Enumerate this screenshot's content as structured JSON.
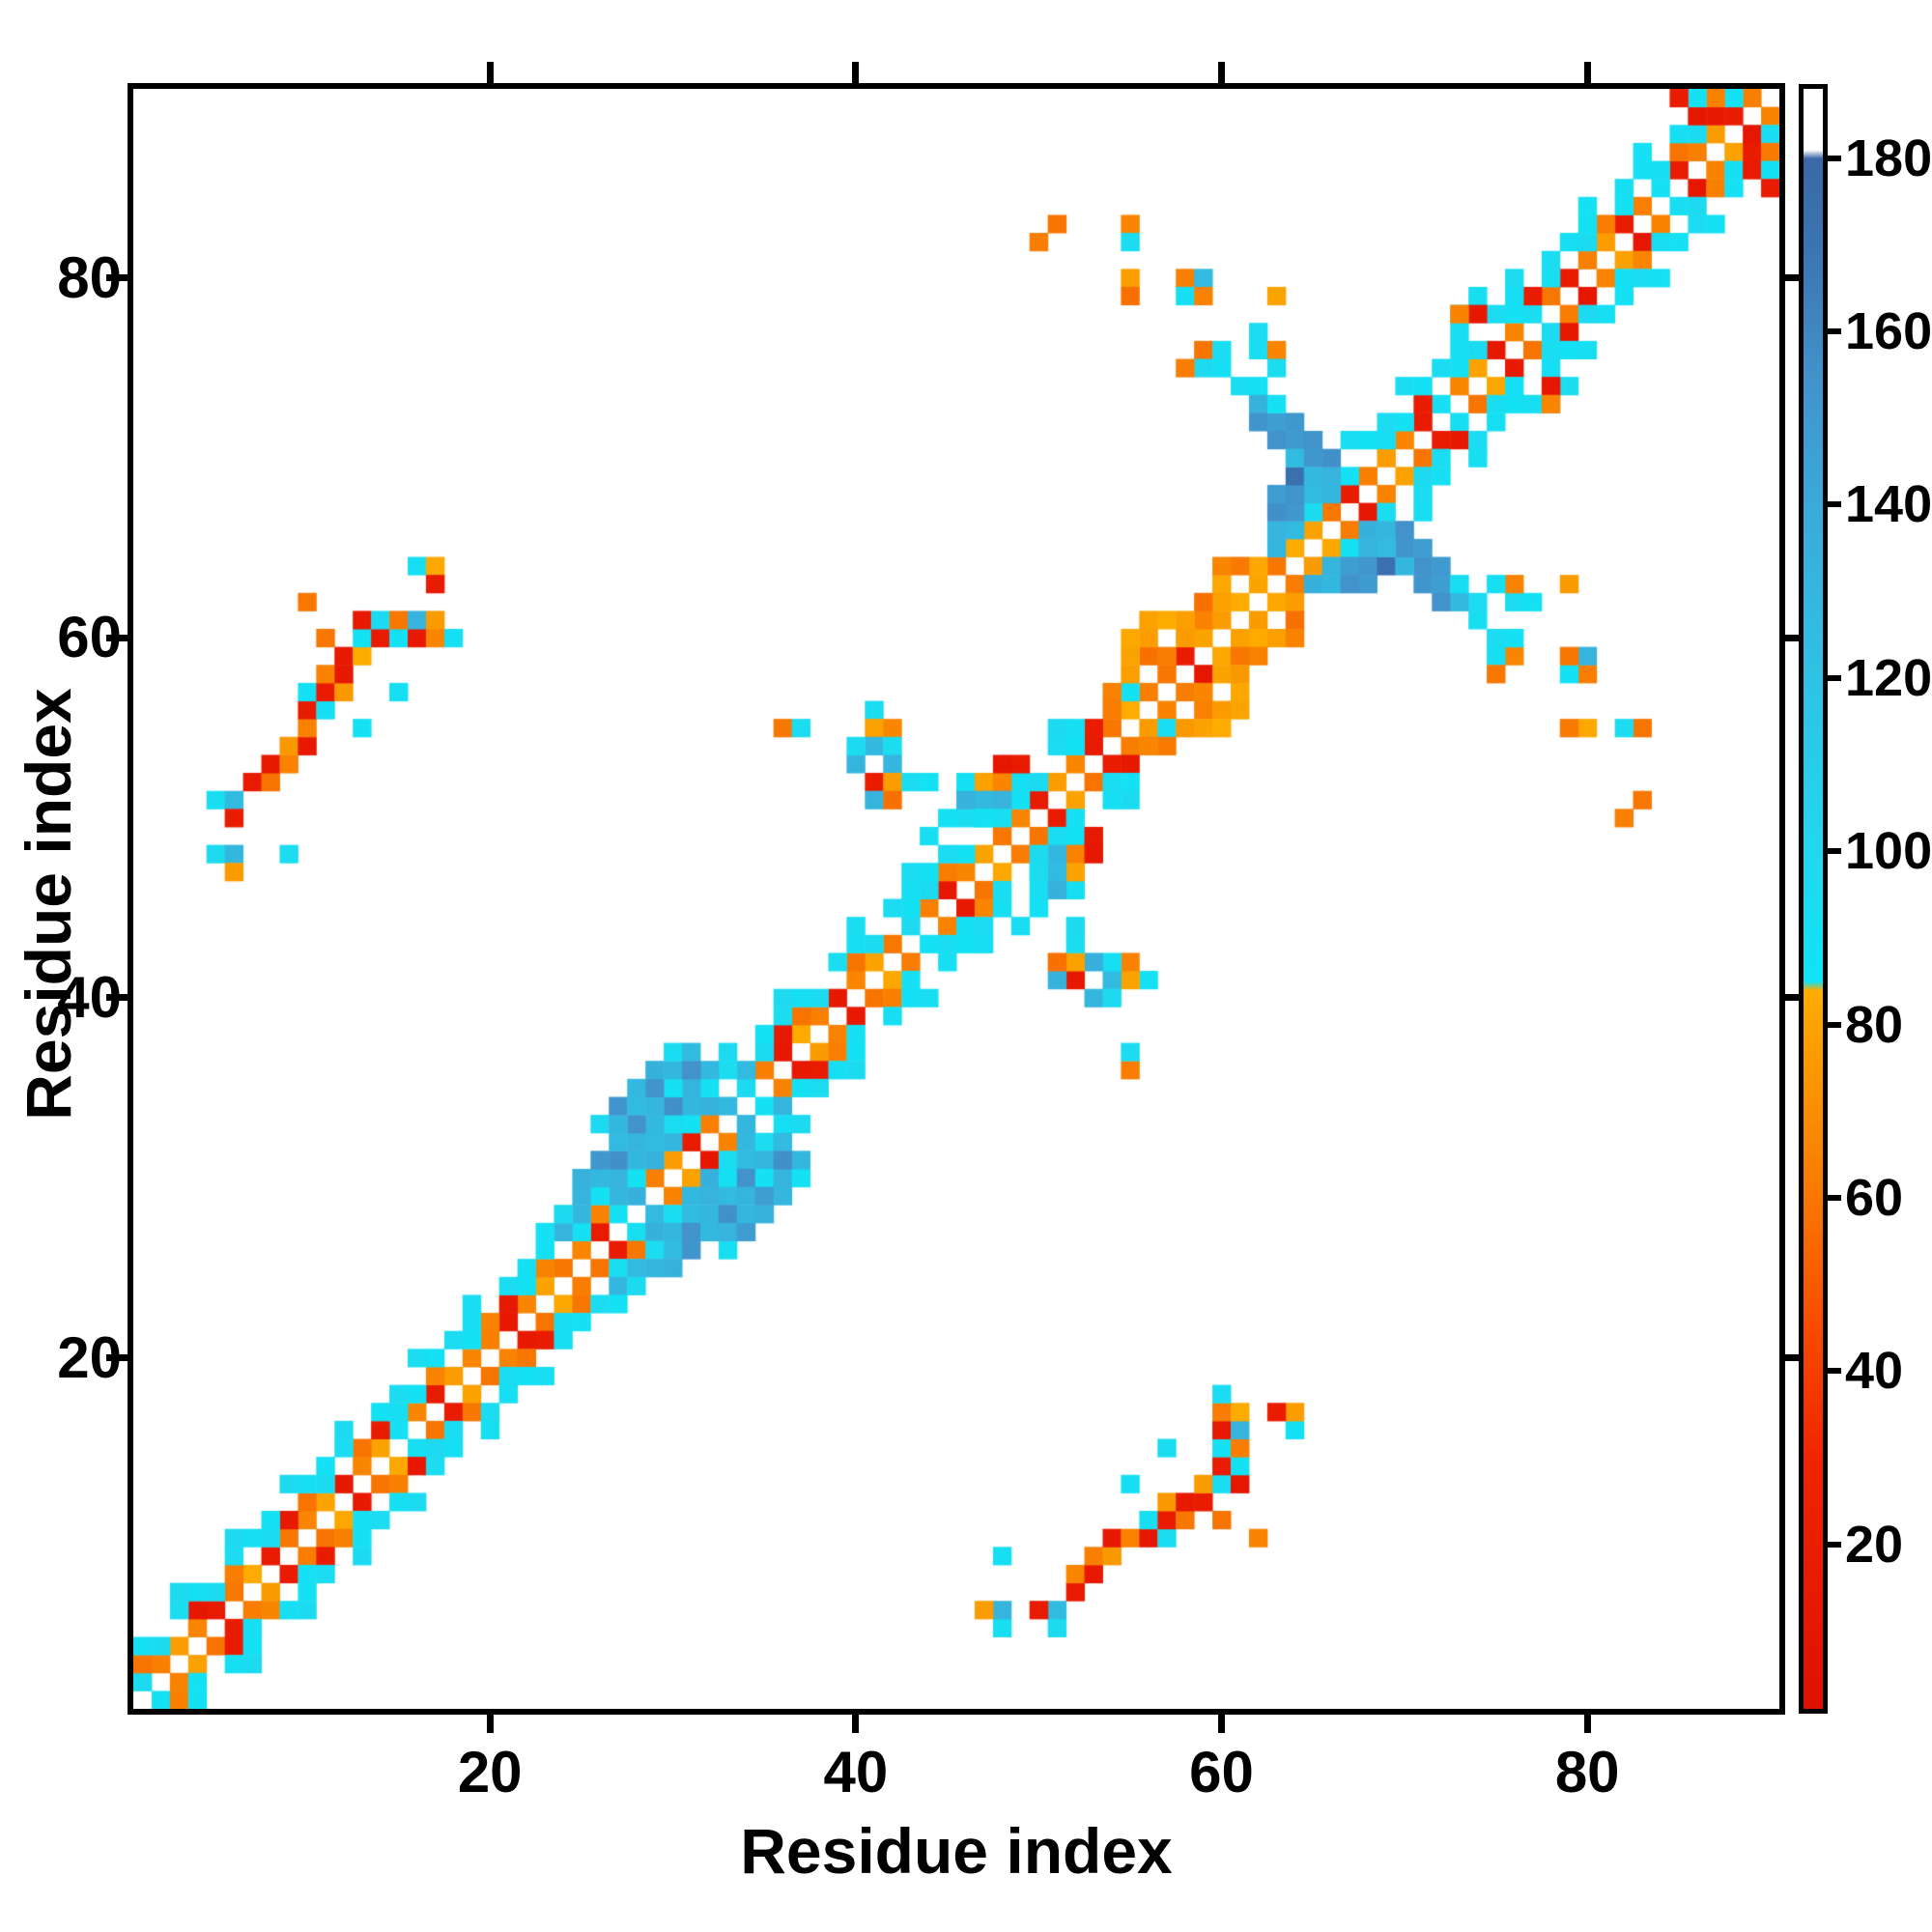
{
  "figure": {
    "background": "#ffffff",
    "axis_color": "#000000"
  },
  "chart_data": {
    "type": "heatmap",
    "title": "",
    "xlabel": "Residue index",
    "ylabel": "Residue index",
    "n_residues": 90,
    "x_range": [
      0.5,
      90.5
    ],
    "y_range": [
      0.5,
      90.5
    ],
    "x_ticks": [
      20,
      40,
      60,
      80
    ],
    "y_ticks": [
      20,
      40,
      60,
      80
    ],
    "grid": false,
    "symmetric": true,
    "legend_position": "right-colorbar",
    "colorbar": {
      "min": 1,
      "max": 188,
      "ticks": [
        20,
        40,
        60,
        80,
        100,
        120,
        140,
        160,
        180
      ],
      "stops": [
        [
          1,
          "#e01000"
        ],
        [
          30,
          "#f02500"
        ],
        [
          45,
          "#f84b00"
        ],
        [
          62,
          "#f87d00"
        ],
        [
          80,
          "#fba300"
        ],
        [
          84,
          "#ffad00"
        ],
        [
          85,
          "#10e4f6"
        ],
        [
          100,
          "#22d7ee"
        ],
        [
          120,
          "#2fc2e4"
        ],
        [
          140,
          "#3aaad8"
        ],
        [
          155,
          "#4292cb"
        ],
        [
          170,
          "#3b74b2"
        ],
        [
          180,
          "#3a68a8"
        ],
        [
          181,
          "#ffffff"
        ],
        [
          188,
          "#ffffff"
        ]
      ]
    },
    "palette_values": {
      "1": 14,
      "2": 45,
      "3": 62,
      "4": 79,
      "5": 92,
      "6": 110,
      "7": 130,
      "8": 152,
      "9": 170
    },
    "diagonals": {
      "1": [
        5,
        3,
        4,
        3,
        1,
        3,
        4,
        1,
        3,
        3,
        4,
        1,
        3,
        4,
        5,
        3,
        1,
        4,
        3,
        3,
        1,
        3,
        4,
        3,
        3,
        1,
        5,
        7,
        3,
        4,
        1,
        3,
        7,
        5,
        3,
        1,
        4,
        3,
        1,
        3,
        4,
        3,
        5,
        3,
        1,
        3,
        4,
        3,
        3,
        1,
        4,
        3,
        1,
        3,
        4,
        3,
        3,
        1,
        4,
        4,
        4,
        4,
        3,
        4,
        4,
        3,
        1,
        3,
        4,
        3,
        1,
        5,
        3,
        4,
        1,
        3,
        5,
        3,
        1,
        3,
        4,
        1,
        3,
        5,
        1,
        3,
        4,
        1,
        3
      ],
      "2": [
        3,
        5,
        0,
        1,
        5,
        3,
        0,
        5,
        1,
        3,
        5,
        0,
        3,
        1,
        5,
        5,
        3,
        0,
        5,
        3,
        1,
        5,
        3,
        0,
        5,
        3,
        7,
        5,
        7,
        7,
        5,
        7,
        0,
        7,
        5,
        1,
        3,
        5,
        0,
        3,
        5,
        0,
        5,
        5,
        3,
        5,
        0,
        3,
        5,
        5,
        0,
        5,
        1,
        3,
        5,
        0,
        3,
        4,
        3,
        4,
        0,
        4,
        7,
        7,
        5,
        7,
        5,
        0,
        5,
        5,
        1,
        0,
        5,
        5,
        0,
        5,
        1,
        5,
        0,
        5,
        3,
        5,
        0,
        5,
        3,
        5,
        1,
        5
      ],
      "3": [
        5,
        0,
        5,
        5,
        0,
        5,
        5,
        5,
        0,
        5,
        5,
        5,
        0,
        5,
        5,
        0,
        5,
        5,
        5,
        0,
        5,
        5,
        5,
        7,
        7,
        5,
        7,
        7,
        7,
        5,
        7,
        5,
        5,
        0,
        5,
        5,
        5,
        0,
        5,
        5,
        0,
        5,
        5,
        5,
        5,
        0,
        5,
        5,
        5,
        0,
        5,
        5,
        0,
        3,
        4,
        3,
        0,
        4,
        3,
        4,
        3,
        0,
        7,
        8,
        7,
        7,
        0,
        5,
        5,
        0,
        5,
        5,
        5,
        0,
        5,
        5,
        0,
        5,
        5,
        5,
        0,
        5,
        5,
        0,
        5,
        1,
        3
      ],
      "4": [
        0,
        0,
        5,
        0,
        0,
        5,
        0,
        0,
        5,
        0,
        0,
        5,
        0,
        0,
        0,
        5,
        0,
        0,
        5,
        0,
        0,
        0,
        5,
        5,
        7,
        7,
        8,
        7,
        7,
        8,
        7,
        7,
        5,
        0,
        0,
        5,
        0,
        0,
        0,
        5,
        0,
        0,
        5,
        0,
        0,
        5,
        5,
        0,
        0,
        0,
        5,
        0,
        0,
        0,
        4,
        4,
        4,
        0,
        0,
        3,
        0,
        0,
        8,
        8,
        0,
        8,
        5,
        0,
        0,
        5,
        0,
        0,
        5,
        0,
        0,
        5,
        0,
        0,
        0,
        5,
        0,
        0,
        5,
        0,
        0,
        5
      ],
      "5": [
        0,
        0,
        0,
        0,
        0,
        0,
        0,
        0,
        0,
        0,
        0,
        0,
        0,
        0,
        0,
        0,
        0,
        0,
        0,
        0,
        0,
        0,
        0,
        0,
        7,
        8,
        7,
        8,
        7,
        5,
        0,
        0,
        0,
        0,
        0,
        0,
        0,
        0,
        0,
        0,
        0,
        0,
        0,
        5,
        5,
        0,
        0,
        0,
        0,
        0,
        0,
        0,
        0,
        0,
        4,
        4,
        0,
        0,
        0,
        0,
        0,
        0,
        8,
        9,
        0,
        0,
        0,
        0,
        0,
        0,
        0,
        0,
        5,
        5,
        0,
        0,
        0,
        0,
        0,
        0,
        0,
        0,
        0,
        0,
        0
      ]
    },
    "extra_cells": [
      [
        5,
        51,
        5
      ],
      [
        6,
        51,
        7
      ],
      [
        6,
        50,
        1
      ],
      [
        5,
        48,
        5
      ],
      [
        6,
        48,
        7
      ],
      [
        6,
        47,
        4
      ],
      [
        9,
        48,
        5
      ],
      [
        7,
        52,
        1
      ],
      [
        8,
        52,
        3
      ],
      [
        8,
        53,
        1
      ],
      [
        9,
        53,
        3
      ],
      [
        9,
        54,
        4
      ],
      [
        10,
        54,
        1
      ],
      [
        10,
        55,
        3
      ],
      [
        10,
        56,
        1
      ],
      [
        11,
        56,
        5
      ],
      [
        10,
        57,
        5
      ],
      [
        11,
        57,
        1
      ],
      [
        12,
        57,
        4
      ],
      [
        11,
        58,
        3
      ],
      [
        12,
        58,
        1
      ],
      [
        12,
        59,
        1
      ],
      [
        13,
        59,
        4
      ],
      [
        11,
        60,
        3
      ],
      [
        10,
        62,
        3
      ],
      [
        13,
        60,
        5
      ],
      [
        14,
        60,
        1
      ],
      [
        15,
        60,
        5
      ],
      [
        16,
        60,
        1
      ],
      [
        17,
        60,
        3
      ],
      [
        18,
        60,
        5
      ],
      [
        13,
        61,
        1
      ],
      [
        14,
        61,
        5
      ],
      [
        15,
        61,
        3
      ],
      [
        16,
        61,
        7
      ],
      [
        17,
        61,
        4
      ],
      [
        16,
        64,
        5
      ],
      [
        17,
        64,
        4
      ],
      [
        17,
        63,
        1
      ],
      [
        13,
        55,
        5
      ],
      [
        15,
        57,
        5
      ],
      [
        36,
        55,
        3
      ],
      [
        37,
        55,
        5
      ],
      [
        41,
        56,
        5
      ],
      [
        41,
        55,
        4
      ],
      [
        42,
        55,
        3
      ],
      [
        41,
        54,
        7
      ],
      [
        42,
        54,
        5
      ],
      [
        42,
        53,
        7
      ],
      [
        41,
        52,
        1
      ],
      [
        42,
        52,
        4
      ],
      [
        43,
        52,
        5
      ],
      [
        44,
        52,
        5
      ],
      [
        41,
        51,
        7
      ],
      [
        42,
        51,
        3
      ],
      [
        40,
        53,
        7
      ],
      [
        40,
        54,
        5
      ],
      [
        46,
        52,
        5
      ],
      [
        47,
        52,
        4
      ],
      [
        48,
        52,
        3
      ],
      [
        48,
        53,
        1
      ],
      [
        49,
        53,
        1
      ],
      [
        46,
        51,
        7
      ],
      [
        47,
        51,
        7
      ],
      [
        48,
        51,
        7
      ],
      [
        47,
        50,
        5
      ],
      [
        48,
        50,
        5
      ],
      [
        61,
        74,
        5
      ],
      [
        62,
        74,
        5
      ],
      [
        62,
        73,
        7
      ],
      [
        62,
        72,
        8
      ],
      [
        63,
        72,
        8
      ],
      [
        63,
        71,
        8
      ],
      [
        64,
        72,
        8
      ],
      [
        64,
        71,
        8
      ],
      [
        64,
        70,
        7
      ],
      [
        65,
        71,
        8
      ],
      [
        65,
        70,
        8
      ],
      [
        65,
        69,
        7
      ],
      [
        63,
        73,
        5
      ],
      [
        60,
        75,
        5
      ],
      [
        51,
        83,
        3
      ],
      [
        55,
        83,
        3
      ],
      [
        55,
        82,
        5
      ],
      [
        55,
        80,
        4
      ],
      [
        55,
        79,
        3
      ],
      [
        58,
        80,
        3
      ],
      [
        59,
        80,
        7
      ],
      [
        58,
        79,
        5
      ],
      [
        59,
        79,
        3
      ],
      [
        63,
        79,
        4
      ],
      [
        59,
        76,
        3
      ],
      [
        60,
        76,
        5
      ],
      [
        62,
        76,
        5
      ],
      [
        63,
        76,
        3
      ],
      [
        63,
        75,
        5
      ],
      [
        62,
        77,
        5
      ],
      [
        59,
        75,
        5
      ],
      [
        58,
        75,
        3
      ],
      [
        50,
        82,
        3
      ],
      [
        74,
        78,
        1
      ],
      [
        73,
        78,
        3
      ],
      [
        26,
        33,
        5
      ],
      [
        27,
        33,
        7
      ],
      [
        27,
        34,
        8
      ],
      [
        28,
        34,
        7
      ],
      [
        28,
        35,
        7
      ],
      [
        29,
        35,
        8
      ],
      [
        29,
        36,
        7
      ],
      [
        30,
        36,
        7
      ],
      [
        30,
        37,
        5
      ],
      [
        31,
        37,
        7
      ],
      [
        31,
        36,
        8
      ],
      [
        85,
        90,
        1
      ]
    ]
  }
}
